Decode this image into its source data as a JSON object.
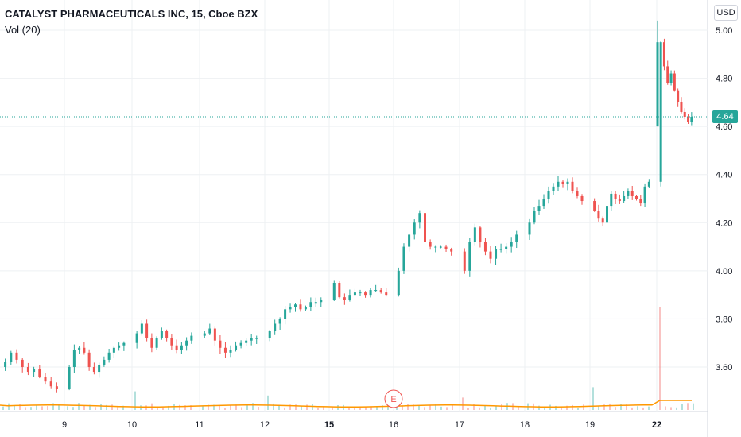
{
  "header": {
    "title": "CATALYST PHARMACEUTICALS INC, 15, Cboe BZX",
    "volume_indicator": "Vol (20)",
    "currency": "USD",
    "last_price_label": "4.64"
  },
  "colors": {
    "up": "#26a69a",
    "down": "#ef5350",
    "volume_ma": "#ff9800",
    "grid": "#eef0f3",
    "price_line": "#26a69a"
  },
  "event_marker": {
    "label": "E",
    "at_day": "16"
  },
  "chart_data": {
    "type": "candlestick",
    "title": "CATALYST PHARMACEUTICALS INC, 15, Cboe BZX",
    "interval": "15",
    "exchange": "Cboe BZX",
    "y_axis": {
      "side": "right",
      "ylim": [
        3.42,
        5.05
      ],
      "ticks": [
        "5.00",
        "4.80",
        "4.60",
        "4.40",
        "4.20",
        "4.00",
        "3.80",
        "3.60"
      ]
    },
    "x_axis": {
      "ticks": [
        "9",
        "10",
        "11",
        "12",
        "15",
        "16",
        "17",
        "18",
        "19",
        "22"
      ],
      "bold_ticks": [
        "15",
        "22"
      ]
    },
    "last_price": 4.64,
    "grid": true,
    "daily_close_path": [
      {
        "day": "8",
        "points": [
          3.62,
          3.66,
          3.63,
          3.6,
          3.58,
          3.59,
          3.56,
          3.54,
          3.52,
          3.51
        ]
      },
      {
        "day": "9",
        "points": [
          3.6,
          3.67,
          3.68,
          3.66,
          3.6,
          3.58,
          3.61,
          3.63,
          3.66,
          3.68,
          3.69,
          3.7
        ]
      },
      {
        "day": "10",
        "points": [
          3.74,
          3.78,
          3.72,
          3.68,
          3.72,
          3.75,
          3.72,
          3.69,
          3.67,
          3.69,
          3.71,
          3.73
        ]
      },
      {
        "day": "11",
        "points": [
          3.74,
          3.76,
          3.71,
          3.68,
          3.66,
          3.67,
          3.69,
          3.7,
          3.71,
          3.72,
          3.72
        ]
      },
      {
        "day": "12",
        "points": [
          3.75,
          3.78,
          3.8,
          3.84,
          3.85,
          3.86,
          3.84,
          3.85,
          3.87,
          3.87,
          3.88
        ]
      },
      {
        "day": "15",
        "points": [
          3.95,
          3.89,
          3.88,
          3.9,
          3.91,
          3.91,
          3.9,
          3.92,
          3.92,
          3.91,
          3.9
        ]
      },
      {
        "day": "16",
        "points": [
          4.0,
          4.1,
          4.15,
          4.2,
          4.24,
          4.12,
          4.1,
          4.1,
          4.1,
          4.09,
          4.08
        ]
      },
      {
        "day": "17",
        "points": [
          4.0,
          4.12,
          4.18,
          4.12,
          4.08,
          4.05,
          4.09,
          4.09,
          4.1,
          4.12,
          4.15
        ]
      },
      {
        "day": "18",
        "points": [
          4.2,
          4.25,
          4.27,
          4.3,
          4.33,
          4.35,
          4.37,
          4.36,
          4.37,
          4.33,
          4.31,
          4.29
        ]
      },
      {
        "day": "19",
        "points": [
          4.25,
          4.22,
          4.2,
          4.27,
          4.32,
          4.3,
          4.29,
          4.31,
          4.33,
          4.31,
          4.3,
          4.28,
          4.35,
          4.37
        ]
      },
      {
        "day": "22",
        "points": [
          4.95,
          4.85,
          4.78,
          4.82,
          4.75,
          4.7,
          4.66,
          4.64,
          4.62,
          4.64
        ]
      }
    ],
    "volume": {
      "label": "Vol (20)",
      "spikes": [
        {
          "day": "10",
          "relative": 0.18
        },
        {
          "day": "12",
          "relative": 0.14
        },
        {
          "day": "17",
          "relative": 0.12
        },
        {
          "day": "19",
          "relative": 0.22
        },
        {
          "day": "22",
          "relative": 1.0
        }
      ]
    }
  }
}
